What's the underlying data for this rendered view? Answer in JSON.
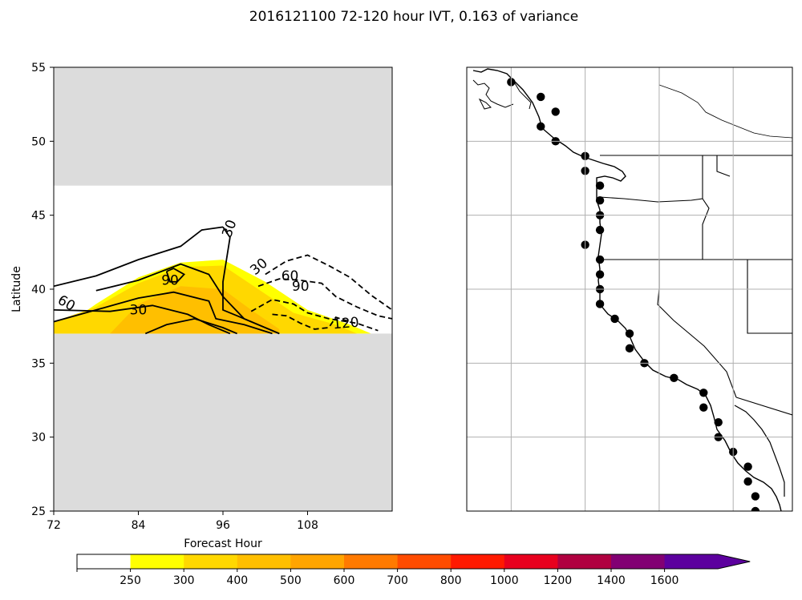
{
  "figure": {
    "title": "2016121100 72-120 hour IVT, 0.163 of variance"
  },
  "chart_data": [
    {
      "type": "contour",
      "panel": "left",
      "xlabel": "Forecast Hour",
      "ylabel": "Latitude",
      "xlim": [
        72,
        120
      ],
      "ylim": [
        25,
        55
      ],
      "xticks": [
        "72",
        "84",
        "96",
        "108"
      ],
      "yticks": [
        "25",
        "30",
        "35",
        "40",
        "45",
        "50",
        "55"
      ],
      "masked_regions": [
        {
          "lat_from": 47,
          "lat_to": 55
        },
        {
          "lat_from": 25,
          "lat_to": 37
        }
      ],
      "masked_color": "#dcdcdc",
      "filled_ivt": [
        {
          "level": 250,
          "color": "#ffff00",
          "points": [
            [
              72,
              37.0
            ],
            [
              78,
              39.0
            ],
            [
              84,
              40.8
            ],
            [
              90,
              41.8
            ],
            [
              96,
              42.0
            ],
            [
              102,
              40.5
            ],
            [
              108,
              38.6
            ],
            [
              114,
              37.6
            ],
            [
              117,
              37.0
            ]
          ]
        },
        {
          "level": 300,
          "color": "#ffd800",
          "points": [
            [
              72,
              37.0
            ],
            [
              72,
              37.8
            ],
            [
              78,
              38.8
            ],
            [
              84,
              40.4
            ],
            [
              90,
              41.5
            ],
            [
              96,
              41.6
            ],
            [
              101,
              40.0
            ],
            [
              106,
              38.4
            ],
            [
              112,
              37.6
            ],
            [
              115,
              37.0
            ]
          ]
        },
        {
          "level": 400,
          "color": "#ffbf00",
          "points": [
            [
              80,
              37.0
            ],
            [
              84,
              39.0
            ],
            [
              90,
              40.2
            ],
            [
              96,
              40.0
            ],
            [
              100,
              38.6
            ],
            [
              104,
              37.3
            ],
            [
              104,
              37.0
            ]
          ]
        }
      ],
      "contour_labels": [
        "30",
        "60",
        "90",
        "30",
        "30",
        "60",
        "90",
        "120"
      ],
      "contours": [
        {
          "level": 30,
          "style": "solid",
          "points": [
            [
              72,
              40.2
            ],
            [
              78,
              40.9
            ],
            [
              84,
              42.0
            ],
            [
              90,
              42.9
            ],
            [
              93,
              44.0
            ],
            [
              96,
              44.2
            ]
          ]
        },
        {
          "level": 30,
          "style": "solid",
          "points": [
            [
              96,
              44.2
            ],
            [
              97,
              43.5
            ],
            [
              96.5,
              42.0
            ],
            [
              96,
              40.5
            ],
            [
              96,
              38.6
            ],
            [
              98,
              38.2
            ],
            [
              104,
              37.0
            ]
          ]
        },
        {
          "level": 60,
          "style": "solid",
          "points": [
            [
              72,
              37.8
            ],
            [
              78,
              38.6
            ],
            [
              84,
              39.4
            ],
            [
              89,
              39.8
            ],
            [
              94,
              39.2
            ],
            [
              95,
              38.0
            ],
            [
              99,
              37.6
            ],
            [
              103,
              37.0
            ]
          ]
        },
        {
          "level": 90,
          "style": "solid",
          "points": [
            [
              88,
              41.2
            ],
            [
              89,
              41.4
            ],
            [
              90.5,
              41.0
            ],
            [
              89.5,
              40.5
            ],
            [
              88.5,
              40.5
            ],
            [
              88,
              41.2
            ]
          ]
        },
        {
          "level": 30,
          "style": "solid",
          "points": [
            [
              72,
              38.6
            ],
            [
              80,
              38.5
            ],
            [
              86,
              38.9
            ],
            [
              91,
              38.3
            ],
            [
              94,
              37.6
            ],
            [
              97,
              37.0
            ]
          ]
        },
        {
          "level": 60,
          "style": "solid",
          "points": [
            [
              78,
              39.9
            ],
            [
              84,
              40.6
            ],
            [
              90,
              41.7
            ],
            [
              94,
              41.0
            ],
            [
              96,
              39.5
            ],
            [
              99,
              38.0
            ],
            [
              104,
              37.0
            ]
          ]
        },
        {
          "level": 90,
          "style": "solid",
          "points": [
            [
              85,
              37.0
            ],
            [
              88,
              37.6
            ],
            [
              92,
              38.0
            ],
            [
              96,
              37.4
            ],
            [
              98,
              37.0
            ]
          ]
        },
        {
          "level": 30,
          "style": "dashed",
          "points": [
            [
              102,
              41.0
            ],
            [
              105,
              41.9
            ],
            [
              108,
              42.3
            ],
            [
              111,
              41.6
            ],
            [
              114,
              40.8
            ],
            [
              117,
              39.6
            ],
            [
              120,
              38.6
            ]
          ]
        },
        {
          "level": 60,
          "style": "dashed",
          "points": [
            [
              101,
              40.2
            ],
            [
              104,
              40.7
            ],
            [
              107,
              40.6
            ],
            [
              110,
              40.4
            ],
            [
              112,
              39.5
            ],
            [
              115,
              38.8
            ],
            [
              118,
              38.2
            ],
            [
              120,
              38.0
            ]
          ]
        },
        {
          "level": 90,
          "style": "dashed",
          "points": [
            [
              100,
              38.5
            ],
            [
              103,
              39.3
            ],
            [
              106,
              39.0
            ],
            [
              108,
              38.4
            ],
            [
              111,
              38.0
            ],
            [
              115,
              37.7
            ],
            [
              118,
              37.2
            ]
          ]
        },
        {
          "level": 120,
          "style": "dashed",
          "points": [
            [
              103,
              38.3
            ],
            [
              105,
              38.2
            ],
            [
              107,
              37.7
            ],
            [
              109,
              37.3
            ],
            [
              111,
              37.4
            ],
            [
              112,
              38.1
            ],
            [
              114,
              37.8
            ]
          ]
        }
      ]
    },
    {
      "type": "map",
      "panel": "right",
      "grid": true,
      "lon_range": [
        -136,
        -114
      ],
      "lat_range": [
        25,
        55
      ],
      "meridians": [
        -133,
        -128,
        -123,
        -118
      ],
      "parallels": [
        30,
        35,
        40,
        45,
        50
      ],
      "points": [
        [
          -133.0,
          54.0
        ],
        [
          -131.0,
          53.0
        ],
        [
          -130.0,
          52.0
        ],
        [
          -131.0,
          51.0
        ],
        [
          -130.0,
          50.0
        ],
        [
          -128.0,
          49.0
        ],
        [
          -128.0,
          48.0
        ],
        [
          -127.0,
          47.0
        ],
        [
          -127.0,
          46.0
        ],
        [
          -127.0,
          45.0
        ],
        [
          -127.0,
          44.0
        ],
        [
          -128.0,
          43.0
        ],
        [
          -127.0,
          42.0
        ],
        [
          -127.0,
          41.0
        ],
        [
          -127.0,
          40.0
        ],
        [
          -127.0,
          39.0
        ],
        [
          -126.0,
          38.0
        ],
        [
          -125.0,
          37.0
        ],
        [
          -125.0,
          36.0
        ],
        [
          -124.0,
          35.0
        ],
        [
          -122.0,
          34.0
        ],
        [
          -120.0,
          33.0
        ],
        [
          -120.0,
          32.0
        ],
        [
          -119.0,
          31.0
        ],
        [
          -119.0,
          30.0
        ],
        [
          -118.0,
          29.0
        ],
        [
          -117.0,
          28.0
        ],
        [
          -117.0,
          27.0
        ],
        [
          -116.5,
          26.0
        ],
        [
          -116.5,
          25.0
        ]
      ]
    }
  ],
  "colorbar": {
    "levels": [
      "250",
      "300",
      "400",
      "500",
      "600",
      "700",
      "800",
      "1000",
      "1200",
      "1400",
      "1600"
    ],
    "colors": [
      "#ffffff",
      "#ffff00",
      "#ffd800",
      "#ffbf00",
      "#ffa500",
      "#ff7a00",
      "#ff4c00",
      "#ff1a00",
      "#e8001e",
      "#b00040",
      "#820073",
      "#5c009e",
      "#5c009e"
    ],
    "extend": "max"
  }
}
